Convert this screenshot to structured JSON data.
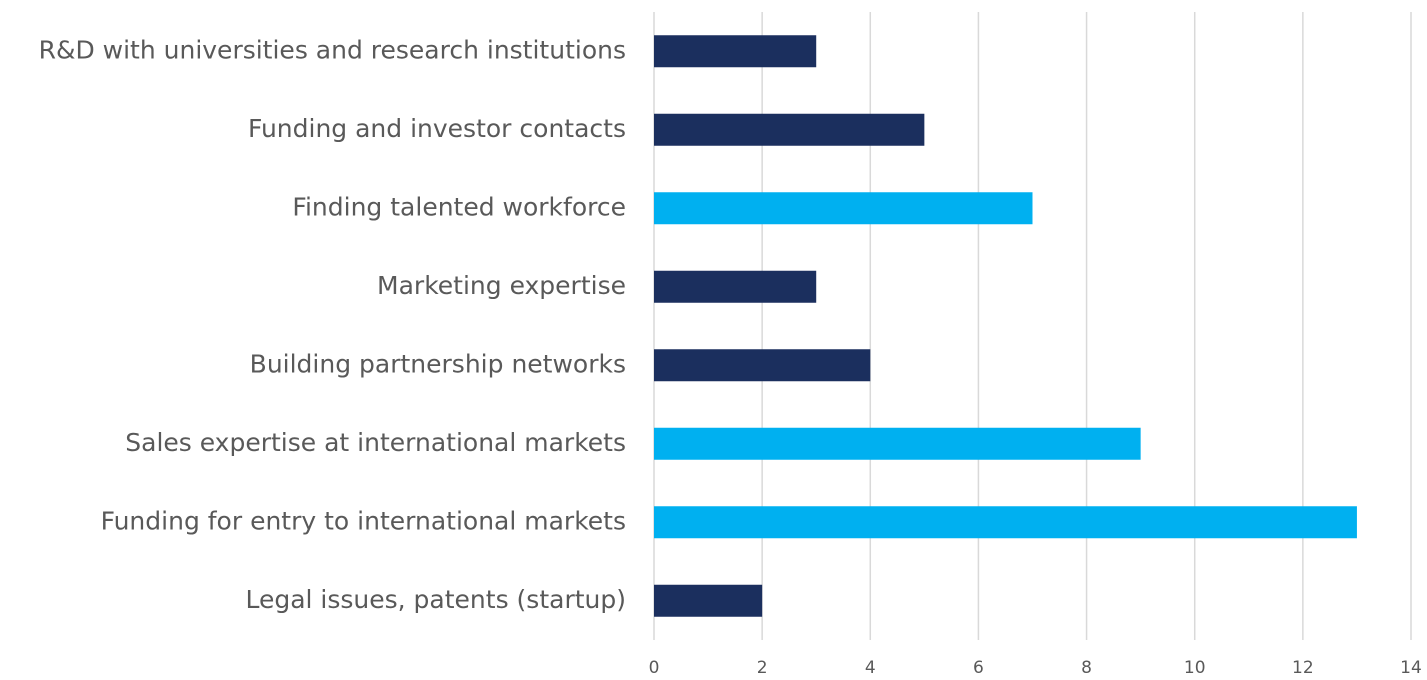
{
  "chart_data": {
    "type": "barh",
    "categories": [
      "R&D with universities and research institutions",
      "Funding and investor contacts",
      "Finding talented workforce",
      "Marketing expertise",
      "Building partnership networks",
      "Sales expertise at international markets",
      "Funding for entry to international markets",
      "Legal issues, patents (startup)"
    ],
    "values": [
      3,
      5,
      7,
      3,
      4,
      9,
      13,
      2
    ],
    "colors": [
      "#1b2f5e",
      "#1b2f5e",
      "#00b0f0",
      "#1b2f5e",
      "#1b2f5e",
      "#00b0f0",
      "#00b0f0",
      "#1b2f5e"
    ],
    "xlim": [
      0,
      14
    ],
    "xticks": [
      0,
      2,
      4,
      6,
      8,
      10,
      12,
      14
    ],
    "grid": true
  }
}
